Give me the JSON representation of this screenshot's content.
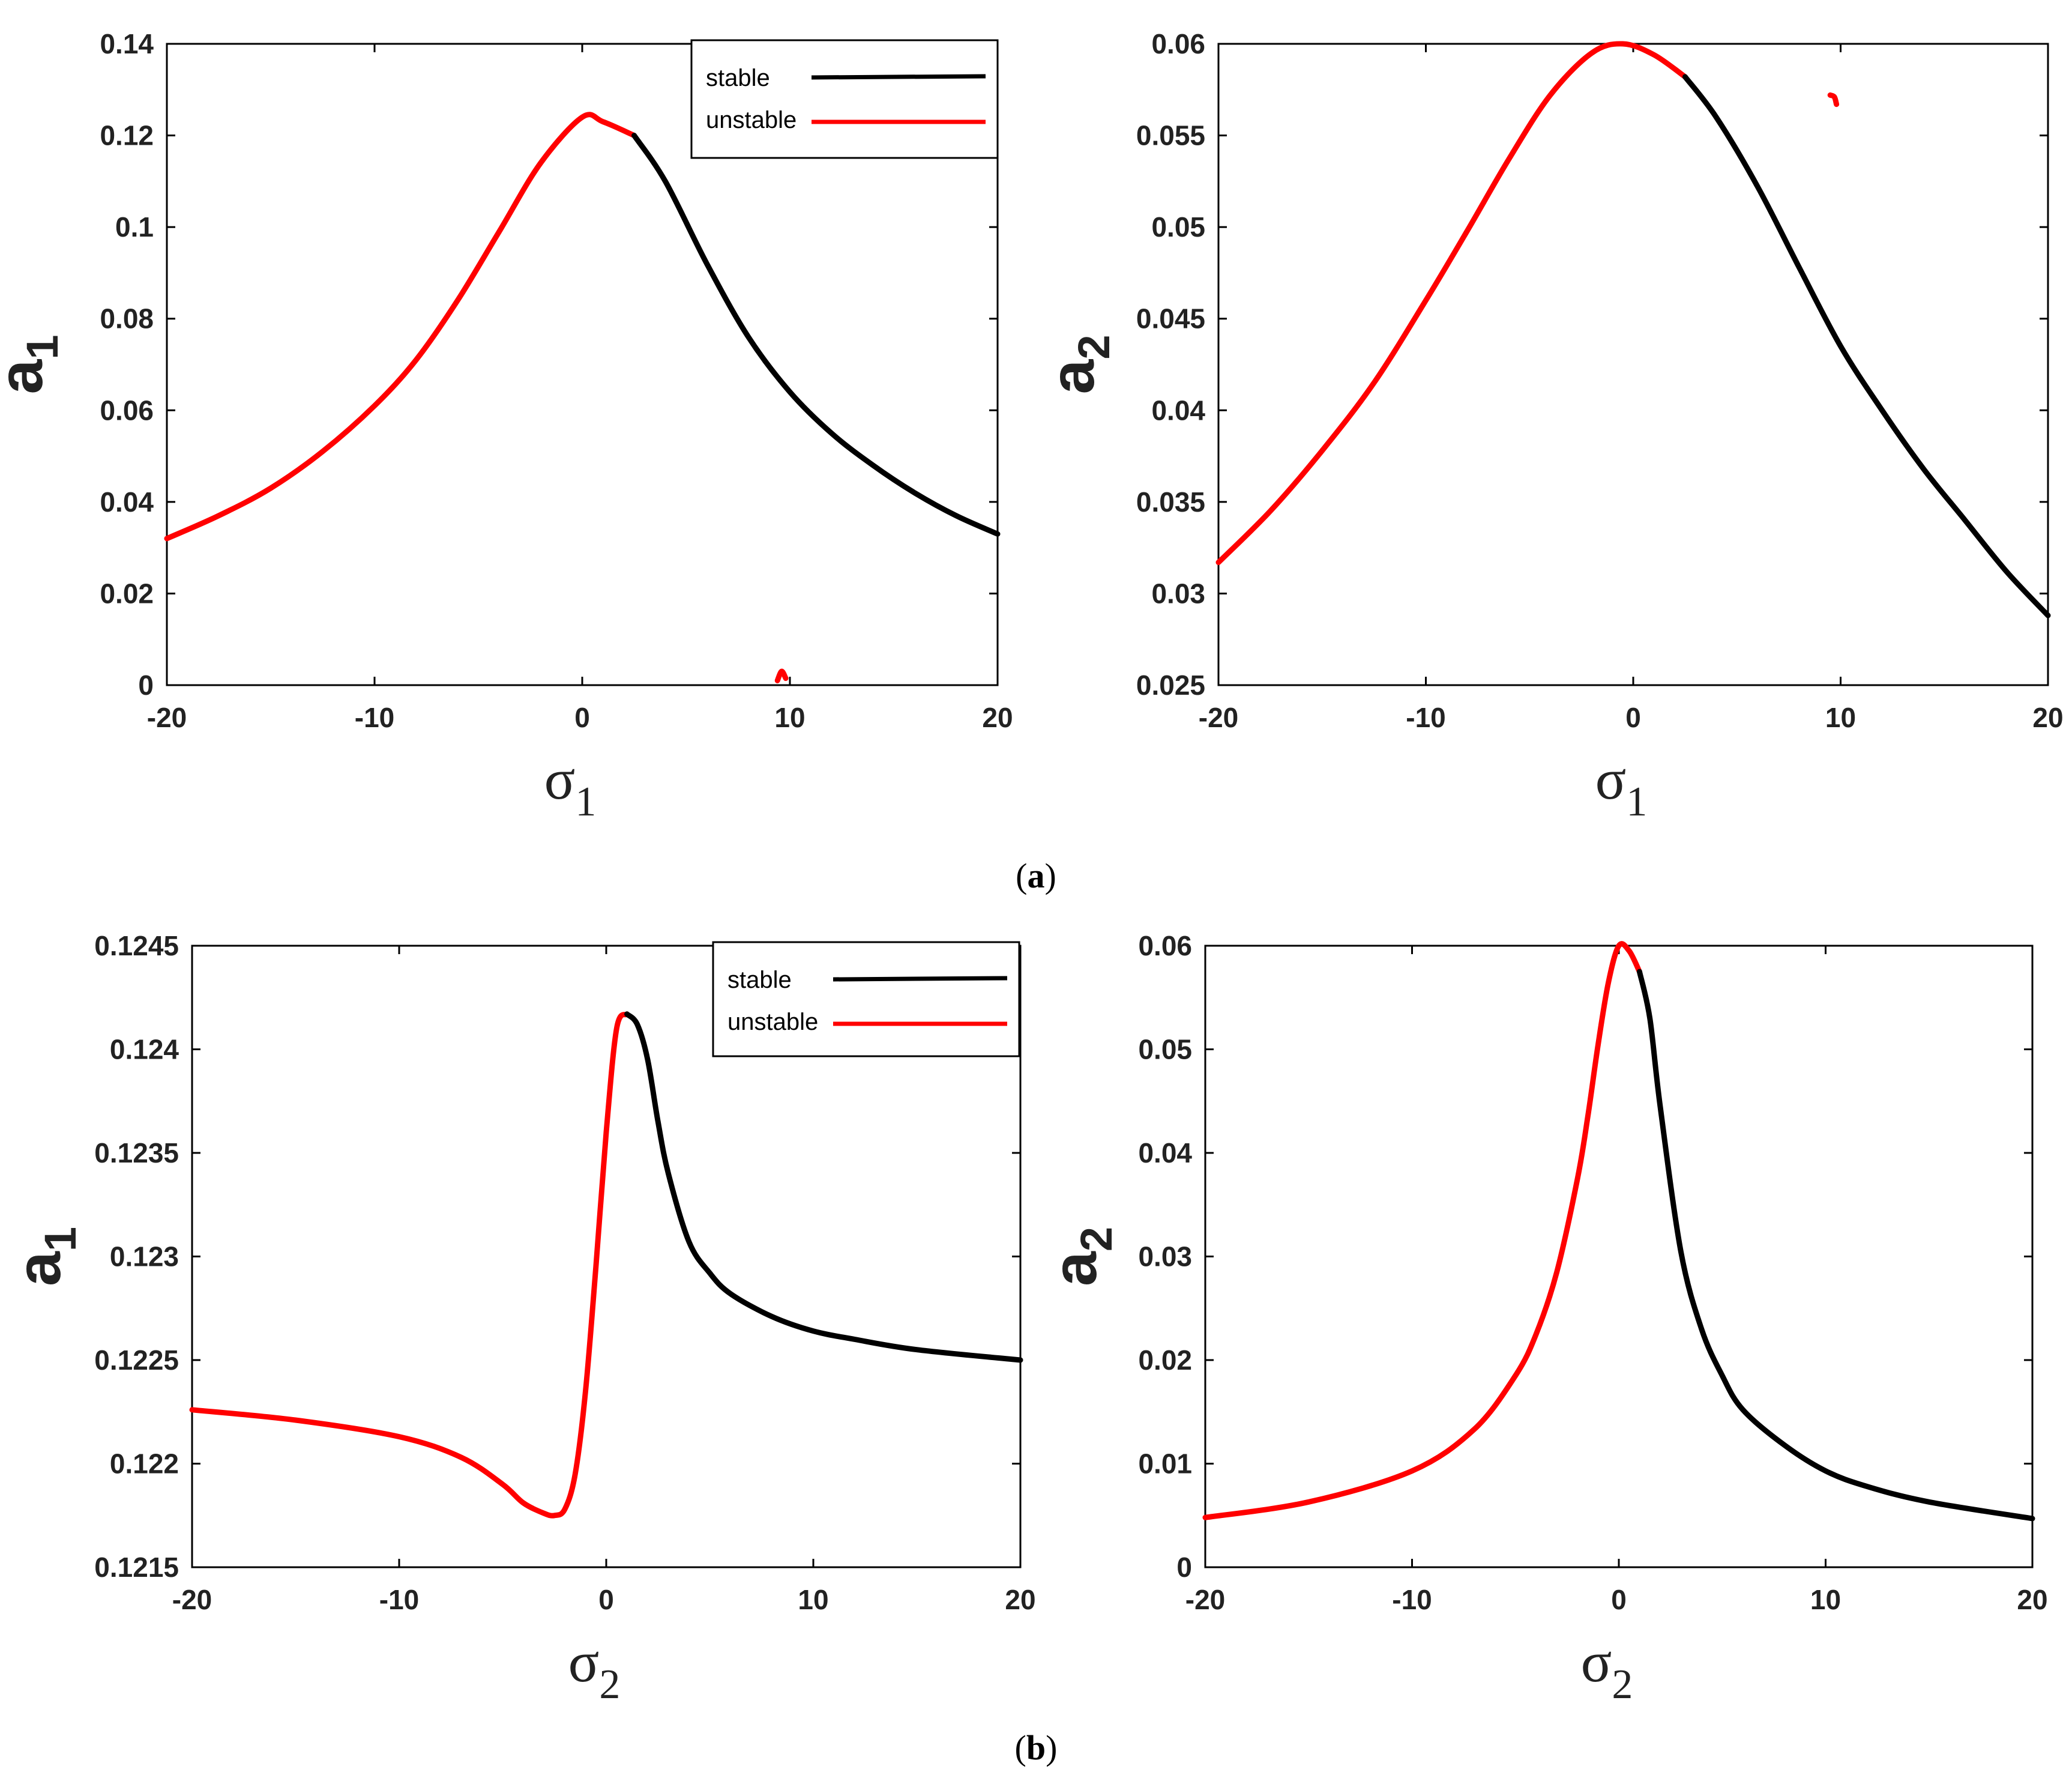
{
  "figure": {
    "captions": [
      {
        "open": "(",
        "letter": "a",
        "close": ")"
      },
      {
        "open": "(",
        "letter": "b",
        "close": ")"
      }
    ]
  },
  "colors": {
    "stable": "#000000",
    "unstable": "#ff0000",
    "axis": "#000000"
  },
  "chart_data": [
    {
      "id": "a-left",
      "type": "line",
      "xlabel": {
        "symbol": "σ",
        "sub": "1"
      },
      "ylabel": {
        "symbol": "a",
        "sub": "1"
      },
      "xlim": [
        -20,
        20
      ],
      "ylim": [
        0,
        0.14
      ],
      "xticks": [
        "-20",
        "-10",
        "0",
        "10",
        "20"
      ],
      "yticks": [
        "0",
        "0.02",
        "0.04",
        "0.06",
        "0.08",
        "0.1",
        "0.12",
        "0.14"
      ],
      "legend": {
        "placement": "top-right",
        "entries": [
          {
            "label": "stable",
            "series": "stable"
          },
          {
            "label": "unstable",
            "series": "unstable"
          }
        ]
      },
      "series": [
        {
          "name": "unstable",
          "x": [
            -20,
            -17.5,
            -15,
            -12.5,
            -10,
            -8,
            -6,
            -4,
            -2,
            0,
            1,
            2.5
          ],
          "y": [
            0.032,
            0.037,
            0.043,
            0.051,
            0.061,
            0.071,
            0.084,
            0.099,
            0.114,
            0.124,
            0.123,
            0.12
          ]
        },
        {
          "name": "stable",
          "x": [
            2.5,
            4,
            6,
            8,
            10,
            12,
            14,
            16,
            18,
            20
          ],
          "y": [
            0.12,
            0.11,
            0.092,
            0.076,
            0.064,
            0.055,
            0.048,
            0.042,
            0.037,
            0.033
          ]
        },
        {
          "name": "unstable",
          "x": [
            9.4,
            9.6,
            9.8
          ],
          "y": [
            0.001,
            0.003,
            0.0015
          ]
        }
      ]
    },
    {
      "id": "a-right",
      "type": "line",
      "xlabel": {
        "symbol": "σ",
        "sub": "1"
      },
      "ylabel": {
        "symbol": "a",
        "sub": "2"
      },
      "xlim": [
        -20,
        20
      ],
      "ylim": [
        0.025,
        0.06
      ],
      "xticks": [
        "-20",
        "-10",
        "0",
        "10",
        "20"
      ],
      "yticks": [
        "0.025",
        "0.03",
        "0.035",
        "0.04",
        "0.045",
        "0.05",
        "0.055",
        "0.06"
      ],
      "series": [
        {
          "name": "unstable",
          "x": [
            -20,
            -17.5,
            -15,
            -12.5,
            -10,
            -8,
            -6,
            -4,
            -2,
            -0.5,
            1,
            2.5
          ],
          "y": [
            0.0317,
            0.0345,
            0.0378,
            0.0415,
            0.046,
            0.0498,
            0.0537,
            0.0572,
            0.0595,
            0.06,
            0.0594,
            0.0582
          ]
        },
        {
          "name": "stable",
          "x": [
            2.5,
            4,
            6,
            8,
            10,
            12,
            14,
            16,
            18,
            20
          ],
          "y": [
            0.0582,
            0.056,
            0.0522,
            0.0478,
            0.0435,
            0.04,
            0.0368,
            0.034,
            0.0312,
            0.0288
          ]
        },
        {
          "name": "unstable",
          "x": [
            9.5,
            9.7,
            9.8
          ],
          "y": [
            0.0572,
            0.0571,
            0.0567
          ]
        }
      ]
    },
    {
      "id": "b-left",
      "type": "line",
      "xlabel": {
        "symbol": "σ",
        "sub": "2"
      },
      "ylabel": {
        "symbol": "a",
        "sub": "1"
      },
      "xlim": [
        -20,
        20
      ],
      "ylim": [
        0.1215,
        0.1245
      ],
      "xticks": [
        "-20",
        "-10",
        "0",
        "10",
        "20"
      ],
      "yticks": [
        "0.1215",
        "0.122",
        "0.1225",
        "0.123",
        "0.1235",
        "0.124",
        "0.1245"
      ],
      "legend": {
        "placement": "top-right",
        "entries": [
          {
            "label": "stable",
            "series": "stable"
          },
          {
            "label": "unstable",
            "series": "unstable"
          }
        ]
      },
      "series": [
        {
          "name": "unstable",
          "x": [
            -20,
            -15,
            -10,
            -7,
            -5,
            -4,
            -3,
            -2.5,
            -2,
            -1.5,
            -1,
            -0.5,
            0,
            0.5,
            1
          ],
          "y": [
            0.12226,
            0.12221,
            0.12213,
            0.12203,
            0.1219,
            0.12181,
            0.12176,
            0.12175,
            0.12178,
            0.12195,
            0.12235,
            0.12295,
            0.1236,
            0.1241,
            0.12417
          ]
        },
        {
          "name": "stable",
          "x": [
            1,
            1.5,
            2,
            2.5,
            3,
            4,
            5,
            6,
            8,
            10,
            12,
            15,
            20
          ],
          "y": [
            0.12417,
            0.12412,
            0.12395,
            0.12365,
            0.1234,
            0.12307,
            0.12292,
            0.12282,
            0.12271,
            0.12264,
            0.1226,
            0.12255,
            0.1225
          ]
        }
      ]
    },
    {
      "id": "b-right",
      "type": "line",
      "xlabel": {
        "symbol": "σ",
        "sub": "2"
      },
      "ylabel": {
        "symbol": "a",
        "sub": "2"
      },
      "xlim": [
        -20,
        20
      ],
      "ylim": [
        0,
        0.06
      ],
      "xticks": [
        "-20",
        "-10",
        "0",
        "10",
        "20"
      ],
      "yticks": [
        "0",
        "0.01",
        "0.02",
        "0.03",
        "0.04",
        "0.05",
        "0.06"
      ],
      "series": [
        {
          "name": "unstable",
          "x": [
            -20,
            -15,
            -10,
            -7,
            -5,
            -4,
            -3,
            -2,
            -1.5,
            -1,
            -0.5,
            0,
            0.5,
            1
          ],
          "y": [
            0.0048,
            0.0063,
            0.0093,
            0.0133,
            0.0185,
            0.0225,
            0.0285,
            0.0375,
            0.0435,
            0.0505,
            0.0565,
            0.06,
            0.0595,
            0.0575
          ]
        },
        {
          "name": "stable",
          "x": [
            1,
            1.5,
            2,
            3,
            4,
            5,
            6,
            8,
            10,
            12,
            15,
            20
          ],
          "y": [
            0.0575,
            0.053,
            0.0445,
            0.0305,
            0.023,
            0.0185,
            0.0152,
            0.0118,
            0.0093,
            0.0078,
            0.0063,
            0.0047
          ]
        }
      ]
    }
  ]
}
